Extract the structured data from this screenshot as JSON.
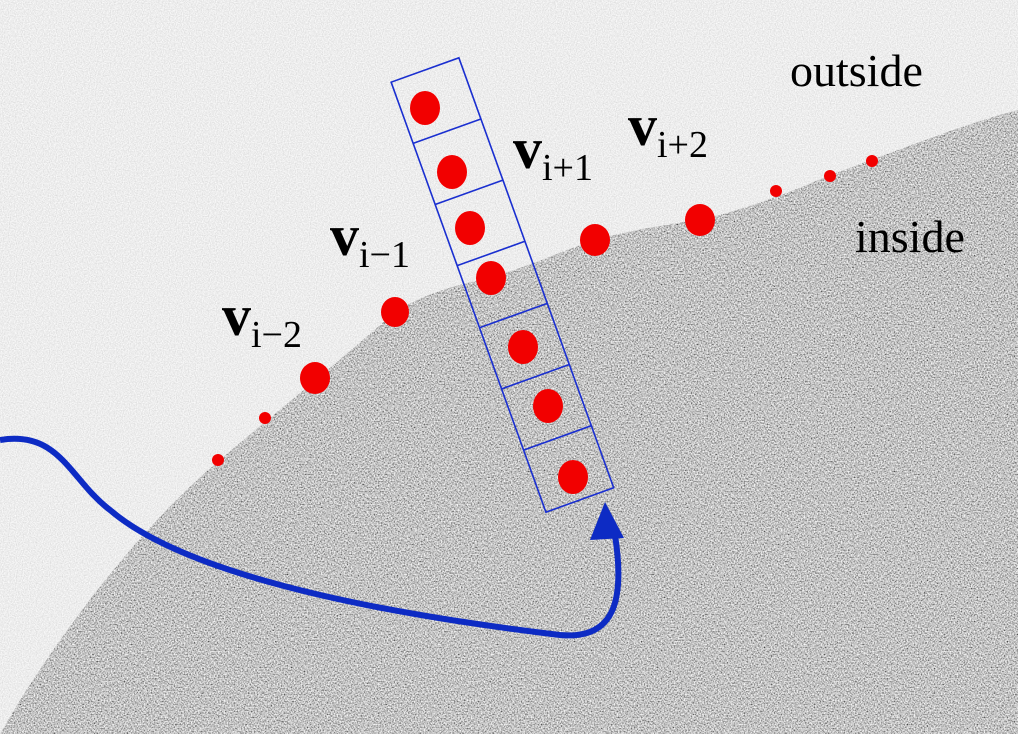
{
  "labels": {
    "outside": "outside",
    "inside": "inside"
  },
  "vertices": [
    {
      "symbol": "v",
      "subscript": "i−2"
    },
    {
      "symbol": "v",
      "subscript": "i−1"
    },
    {
      "symbol": "v",
      "subscript": "i+1"
    },
    {
      "symbol": "v",
      "subscript": "i+2"
    }
  ]
}
